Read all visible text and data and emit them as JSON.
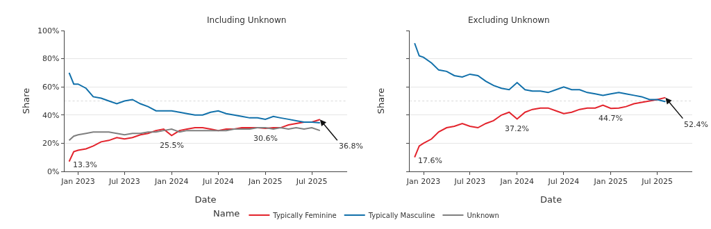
{
  "chart_data": [
    {
      "type": "line",
      "title": "Including Unknown",
      "xlabel": "Date",
      "ylabel": "Share",
      "legend_title": "Name",
      "legend": "bottom",
      "grid": "y",
      "marker": "none",
      "line_style": "solid",
      "x": [
        "2022-11-27",
        "2022-12-15",
        "2023-01-01",
        "2023-02-01",
        "2023-03-01",
        "2023-04-01",
        "2023-05-01",
        "2023-06-01",
        "2023-07-01",
        "2023-08-01",
        "2023-09-01",
        "2023-10-01",
        "2023-11-01",
        "2023-12-01",
        "2024-01-01",
        "2024-02-01",
        "2024-03-01",
        "2024-04-01",
        "2024-05-01",
        "2024-06-01",
        "2024-07-01",
        "2024-08-01",
        "2024-09-01",
        "2024-10-01",
        "2024-11-01",
        "2024-12-01",
        "2025-01-01",
        "2025-02-01",
        "2025-03-01",
        "2025-04-01",
        "2025-05-01",
        "2025-06-01",
        "2025-07-01",
        "2025-08-02"
      ],
      "xlim": [
        "2022-11-08",
        "2025-11-15"
      ],
      "xticks": [
        {
          "value": "2023-01-01",
          "label": "Jan 2023"
        },
        {
          "value": "2023-07-01",
          "label": "Jul 2023"
        },
        {
          "value": "2024-01-01",
          "label": "Jan 2024"
        },
        {
          "value": "2024-07-01",
          "label": "Jul 2024"
        },
        {
          "value": "2025-01-01",
          "label": "Jan 2025"
        },
        {
          "value": "2025-07-01",
          "label": "Jul 2025"
        }
      ],
      "ylim": [
        0,
        100
      ],
      "yticks": [
        {
          "value": 0,
          "label": "0%"
        },
        {
          "value": 20,
          "label": "20%"
        },
        {
          "value": 40,
          "label": "40%"
        },
        {
          "value": 60,
          "label": "60%"
        },
        {
          "value": 80,
          "label": "80%"
        },
        {
          "value": 100,
          "label": "100%"
        }
      ],
      "ref_lines": [
        {
          "axis": "y",
          "value": 50,
          "line_style": "dotted",
          "color": "#d9d9d9"
        }
      ],
      "series": [
        {
          "name": "Typically Feminine",
          "color": "#e3232c",
          "values": [
            7,
            14,
            15,
            16,
            18,
            21,
            22,
            24,
            23,
            24,
            26,
            27,
            29,
            30,
            25.5,
            29,
            30,
            31,
            31,
            30,
            29,
            30,
            30,
            31,
            31,
            31,
            30.6,
            31,
            31,
            33,
            34,
            35,
            35,
            36.8
          ]
        },
        {
          "name": "Typically Masculine",
          "color": "#1170aa",
          "values": [
            70,
            62,
            62,
            59,
            53,
            52,
            50,
            48,
            50,
            51,
            48,
            46,
            43,
            43,
            43,
            42,
            41,
            40,
            40,
            42,
            43,
            41,
            40,
            39,
            38,
            38,
            37,
            39,
            38,
            37,
            36,
            35,
            35,
            34.5
          ]
        },
        {
          "name": "Unknown",
          "color": "#7f7f7f",
          "values": [
            22,
            25,
            26,
            27,
            28,
            28,
            28,
            27,
            26,
            27,
            27,
            28,
            28,
            29,
            30,
            28,
            29,
            29,
            29,
            29,
            29,
            29,
            30,
            30,
            30,
            31,
            31,
            30,
            31,
            30,
            31,
            30,
            31,
            29
          ]
        }
      ],
      "annotations": [
        {
          "text": "13.3%",
          "x": "2022-11-27",
          "y": 7
        },
        {
          "text": "25.5%",
          "x": "2024-01-01",
          "y": 25.5
        },
        {
          "text": "30.6%",
          "x": "2025-01-01",
          "y": 30.6
        },
        {
          "text": "36.8%",
          "x": "2025-08-02",
          "y": 36.8
        }
      ]
    },
    {
      "type": "line",
      "title": "Excluding Unknown",
      "xlabel": "Date",
      "ylabel": "Share",
      "grid": "y",
      "marker": "none",
      "line_style": "solid",
      "tick_labels": "x",
      "x": [
        "2022-11-27",
        "2022-12-15",
        "2023-01-01",
        "2023-02-01",
        "2023-03-01",
        "2023-04-01",
        "2023-05-01",
        "2023-06-01",
        "2023-07-01",
        "2023-08-01",
        "2023-09-01",
        "2023-10-01",
        "2023-11-01",
        "2023-12-01",
        "2024-01-01",
        "2024-02-01",
        "2024-03-01",
        "2024-04-01",
        "2024-05-01",
        "2024-06-01",
        "2024-07-01",
        "2024-08-01",
        "2024-09-01",
        "2024-10-01",
        "2024-11-01",
        "2024-12-01",
        "2025-01-01",
        "2025-02-01",
        "2025-03-01",
        "2025-04-01",
        "2025-05-01",
        "2025-06-01",
        "2025-07-01",
        "2025-08-02"
      ],
      "xlim": [
        "2022-11-08",
        "2025-11-15"
      ],
      "xticks": [
        {
          "value": "2023-01-01",
          "label": "Jan 2023"
        },
        {
          "value": "2023-07-01",
          "label": "Jul 2023"
        },
        {
          "value": "2024-01-01",
          "label": "Jan 2024"
        },
        {
          "value": "2024-07-01",
          "label": "Jul 2024"
        },
        {
          "value": "2025-01-01",
          "label": "Jan 2025"
        },
        {
          "value": "2025-07-01",
          "label": "Jul 2025"
        }
      ],
      "ylim": [
        0,
        100
      ],
      "yticks": [
        {
          "value": 0,
          "label": null
        },
        {
          "value": 20,
          "label": null
        },
        {
          "value": 40,
          "label": null
        },
        {
          "value": 60,
          "label": null
        },
        {
          "value": 80,
          "label": null
        },
        {
          "value": 100,
          "label": null
        }
      ],
      "ref_lines": [
        {
          "axis": "y",
          "value": 50,
          "line_style": "dotted",
          "color": "#d9d9d9"
        }
      ],
      "series": [
        {
          "color": "#e3232c",
          "values": [
            10,
            18,
            20,
            23,
            28,
            31,
            32,
            34,
            32,
            31,
            34,
            36,
            40,
            42,
            37.2,
            42,
            44,
            45,
            45,
            43,
            41,
            42,
            44,
            45,
            45,
            47,
            44.7,
            45,
            46,
            48,
            49,
            50,
            51,
            52.4
          ]
        },
        {
          "color": "#1170aa",
          "values": [
            91,
            82,
            81,
            77,
            72,
            71,
            68,
            67,
            69,
            68,
            64,
            61,
            59,
            58,
            63,
            58,
            57,
            57,
            56,
            58,
            60,
            58,
            58,
            56,
            55,
            54,
            55,
            56,
            55,
            54,
            53,
            51,
            51,
            49.5
          ]
        }
      ],
      "annotations": [
        {
          "text": "17.6%",
          "x": "2022-11-27",
          "y": 10
        },
        {
          "text": "37.2%",
          "x": "2024-01-01",
          "y": 37.2
        },
        {
          "text": "44.7%",
          "x": "2025-01-01",
          "y": 44.7
        },
        {
          "text": "52.4%",
          "x": "2025-08-02",
          "y": 52.4
        }
      ]
    }
  ]
}
